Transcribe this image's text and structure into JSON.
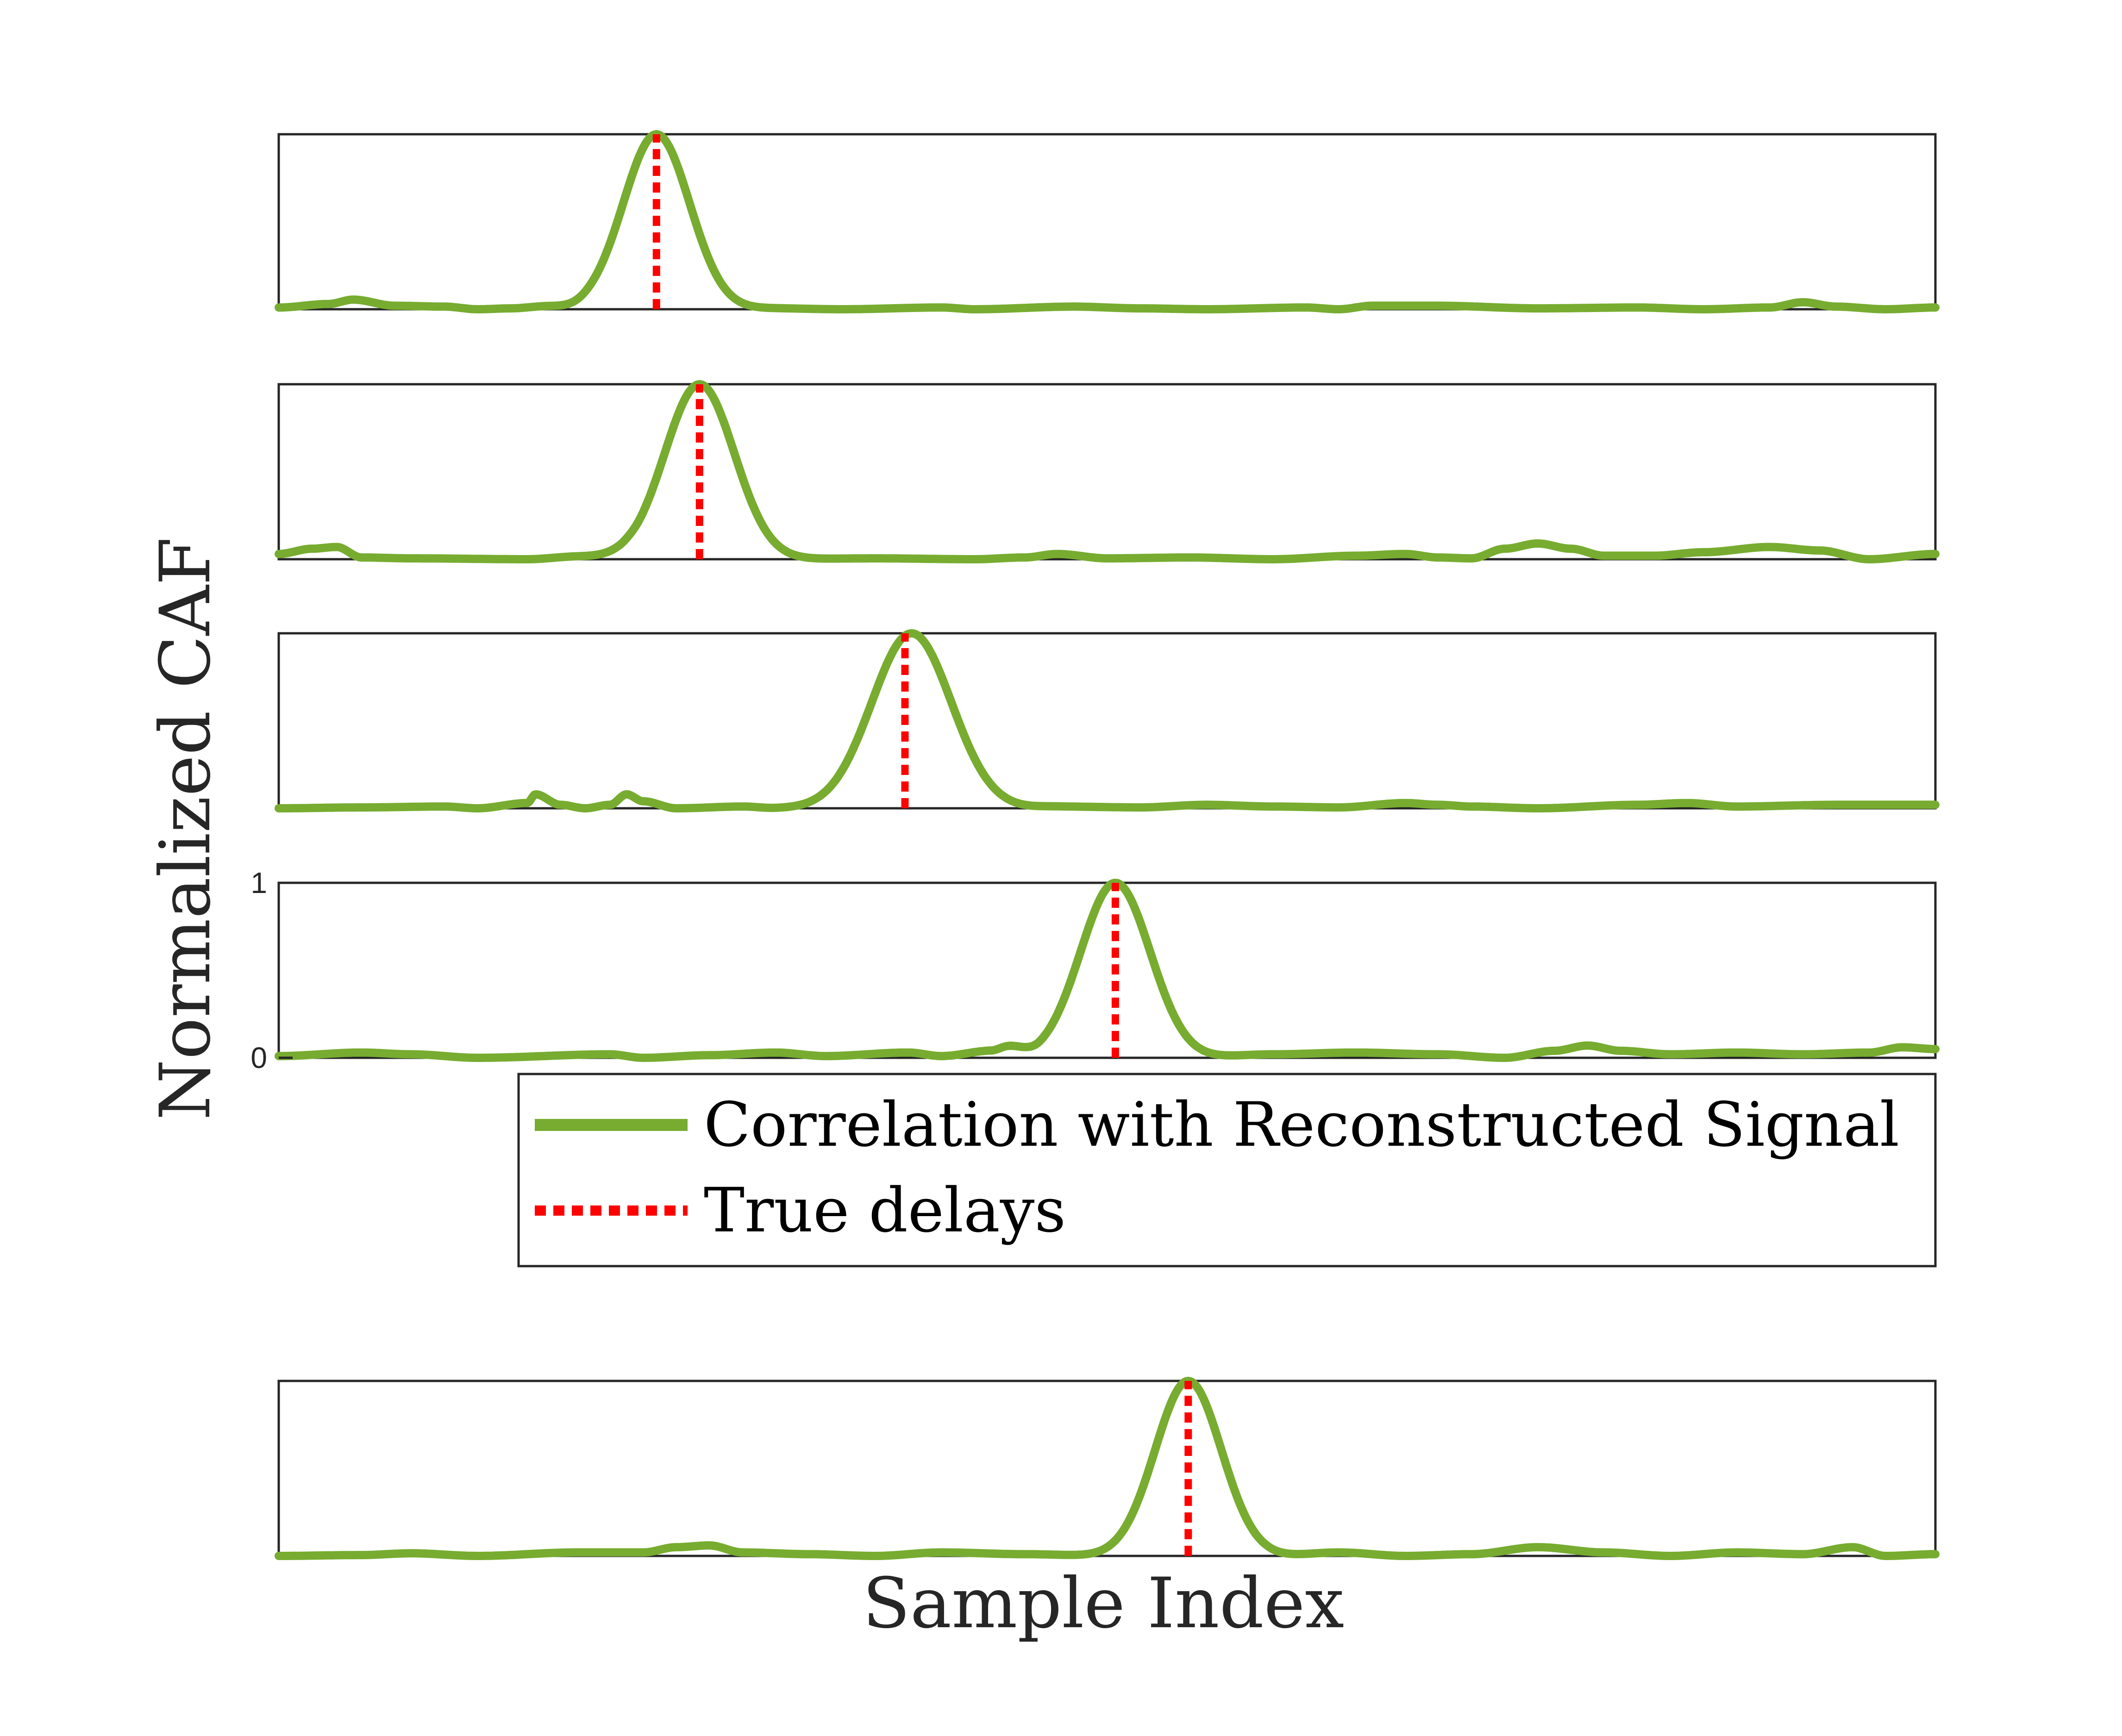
{
  "chart_data": {
    "type": "line",
    "xlabel": "Sample Index",
    "ylabel": "Normalized CAF",
    "ylim": [
      0,
      1
    ],
    "grid": false,
    "legend_placement": "below fourth panel, right-aligned",
    "legend": [
      {
        "label": "Correlation with Reconstructed Signal",
        "style": "solid",
        "color": "#77AC30"
      },
      {
        "label": "True delays",
        "style": "dotted",
        "color": "#FF0000"
      }
    ],
    "series_colors": {
      "correlation": "#77AC30",
      "true_delay": "#FF0000"
    },
    "panels": [
      {
        "yticks": [],
        "true_delay": 0.228,
        "peak": {
          "x": 0.228,
          "width": 0.02
        },
        "baseline": [
          [
            0.0,
            0.01
          ],
          [
            0.03,
            0.03
          ],
          [
            0.045,
            0.055
          ],
          [
            0.07,
            0.02
          ],
          [
            0.1,
            0.015
          ],
          [
            0.12,
            0.0
          ],
          [
            0.14,
            0.005
          ],
          [
            0.16,
            0.015
          ],
          [
            0.18,
            0.0
          ],
          [
            0.19,
            0.005
          ],
          [
            0.27,
            0.0
          ],
          [
            0.3,
            0.005
          ],
          [
            0.34,
            0.0
          ],
          [
            0.4,
            0.01
          ],
          [
            0.42,
            0.0
          ],
          [
            0.48,
            0.015
          ],
          [
            0.52,
            0.005
          ],
          [
            0.56,
            0.0
          ],
          [
            0.62,
            0.01
          ],
          [
            0.64,
            0.0
          ],
          [
            0.66,
            0.02
          ],
          [
            0.7,
            0.02
          ],
          [
            0.76,
            0.005
          ],
          [
            0.82,
            0.01
          ],
          [
            0.86,
            0.0
          ],
          [
            0.9,
            0.01
          ],
          [
            0.92,
            0.04
          ],
          [
            0.94,
            0.015
          ],
          [
            0.97,
            0.0
          ],
          [
            1.0,
            0.01
          ]
        ]
      },
      {
        "yticks": [],
        "true_delay": 0.254,
        "peak": {
          "x": 0.254,
          "width": 0.021
        },
        "baseline": [
          [
            0.0,
            0.03
          ],
          [
            0.02,
            0.06
          ],
          [
            0.035,
            0.07
          ],
          [
            0.05,
            0.01
          ],
          [
            0.08,
            0.005
          ],
          [
            0.15,
            0.0
          ],
          [
            0.18,
            0.015
          ],
          [
            0.21,
            0.01
          ],
          [
            0.22,
            0.0
          ],
          [
            0.3,
            0.0
          ],
          [
            0.36,
            0.005
          ],
          [
            0.42,
            0.0
          ],
          [
            0.45,
            0.01
          ],
          [
            0.47,
            0.03
          ],
          [
            0.5,
            0.005
          ],
          [
            0.55,
            0.01
          ],
          [
            0.6,
            0.0
          ],
          [
            0.65,
            0.02
          ],
          [
            0.68,
            0.03
          ],
          [
            0.7,
            0.01
          ],
          [
            0.72,
            0.005
          ],
          [
            0.74,
            0.06
          ],
          [
            0.76,
            0.09
          ],
          [
            0.78,
            0.06
          ],
          [
            0.8,
            0.02
          ],
          [
            0.83,
            0.02
          ],
          [
            0.86,
            0.04
          ],
          [
            0.9,
            0.07
          ],
          [
            0.93,
            0.05
          ],
          [
            0.96,
            0.0
          ],
          [
            1.0,
            0.03
          ]
        ]
      },
      {
        "yticks": [],
        "true_delay": 0.378,
        "peak": {
          "x": 0.382,
          "width": 0.024
        },
        "baseline": [
          [
            0.0,
            0.0
          ],
          [
            0.05,
            0.005
          ],
          [
            0.1,
            0.01
          ],
          [
            0.12,
            0.0
          ],
          [
            0.15,
            0.03
          ],
          [
            0.155,
            0.08
          ],
          [
            0.17,
            0.02
          ],
          [
            0.185,
            0.0
          ],
          [
            0.2,
            0.02
          ],
          [
            0.21,
            0.08
          ],
          [
            0.22,
            0.04
          ],
          [
            0.24,
            0.0
          ],
          [
            0.28,
            0.01
          ],
          [
            0.3,
            0.0
          ],
          [
            0.44,
            0.0
          ],
          [
            0.47,
            0.01
          ],
          [
            0.52,
            0.005
          ],
          [
            0.56,
            0.02
          ],
          [
            0.6,
            0.01
          ],
          [
            0.64,
            0.005
          ],
          [
            0.68,
            0.03
          ],
          [
            0.7,
            0.02
          ],
          [
            0.72,
            0.01
          ],
          [
            0.76,
            0.0
          ],
          [
            0.82,
            0.02
          ],
          [
            0.85,
            0.03
          ],
          [
            0.88,
            0.01
          ],
          [
            0.94,
            0.02
          ],
          [
            1.0,
            0.02
          ]
        ]
      },
      {
        "yticks": [
          "0",
          "1"
        ],
        "true_delay": 0.505,
        "peak": {
          "x": 0.505,
          "width": 0.021
        },
        "baseline": [
          [
            0.0,
            0.01
          ],
          [
            0.05,
            0.03
          ],
          [
            0.08,
            0.02
          ],
          [
            0.12,
            0.0
          ],
          [
            0.2,
            0.02
          ],
          [
            0.22,
            0.0
          ],
          [
            0.26,
            0.015
          ],
          [
            0.3,
            0.03
          ],
          [
            0.33,
            0.01
          ],
          [
            0.38,
            0.03
          ],
          [
            0.4,
            0.01
          ],
          [
            0.43,
            0.04
          ],
          [
            0.44,
            0.06
          ],
          [
            0.46,
            0.0
          ],
          [
            0.55,
            0.0
          ],
          [
            0.6,
            0.02
          ],
          [
            0.65,
            0.03
          ],
          [
            0.7,
            0.02
          ],
          [
            0.74,
            0.0
          ],
          [
            0.77,
            0.04
          ],
          [
            0.79,
            0.07
          ],
          [
            0.81,
            0.04
          ],
          [
            0.84,
            0.02
          ],
          [
            0.88,
            0.03
          ],
          [
            0.92,
            0.02
          ],
          [
            0.96,
            0.03
          ],
          [
            0.98,
            0.06
          ],
          [
            1.0,
            0.05
          ]
        ]
      },
      {
        "yticks": [],
        "true_delay": 0.549,
        "peak": {
          "x": 0.549,
          "width": 0.02
        },
        "baseline": [
          [
            0.0,
            0.0
          ],
          [
            0.05,
            0.005
          ],
          [
            0.08,
            0.015
          ],
          [
            0.12,
            0.0
          ],
          [
            0.18,
            0.02
          ],
          [
            0.22,
            0.02
          ],
          [
            0.24,
            0.05
          ],
          [
            0.26,
            0.06
          ],
          [
            0.28,
            0.02
          ],
          [
            0.32,
            0.01
          ],
          [
            0.36,
            0.0
          ],
          [
            0.4,
            0.02
          ],
          [
            0.45,
            0.01
          ],
          [
            0.5,
            0.0
          ],
          [
            0.6,
            0.0
          ],
          [
            0.64,
            0.02
          ],
          [
            0.68,
            0.0
          ],
          [
            0.72,
            0.01
          ],
          [
            0.76,
            0.05
          ],
          [
            0.8,
            0.02
          ],
          [
            0.84,
            0.0
          ],
          [
            0.88,
            0.02
          ],
          [
            0.92,
            0.01
          ],
          [
            0.95,
            0.05
          ],
          [
            0.97,
            0.0
          ],
          [
            1.0,
            0.01
          ]
        ]
      }
    ]
  }
}
